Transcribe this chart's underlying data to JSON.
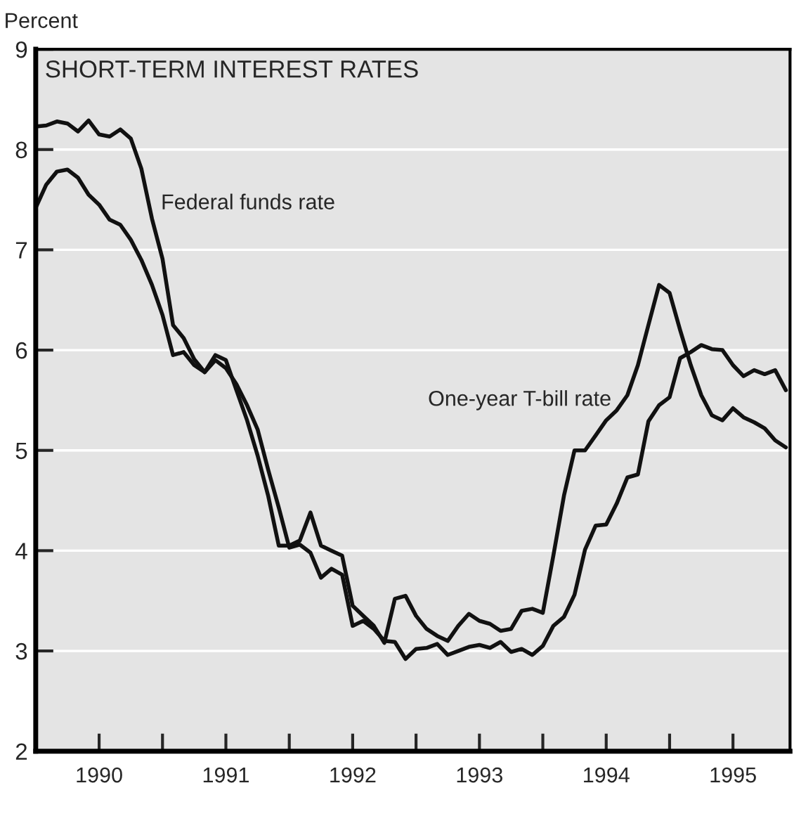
{
  "chart_data": {
    "type": "line",
    "title": "SHORT-TERM INTEREST RATES",
    "ylabel": "Percent",
    "x": [
      1990.0,
      1990.083,
      1990.167,
      1990.25,
      1990.333,
      1990.417,
      1990.5,
      1990.583,
      1990.667,
      1990.75,
      1990.833,
      1990.917,
      1991.0,
      1991.083,
      1991.167,
      1991.25,
      1991.333,
      1991.417,
      1991.5,
      1991.583,
      1991.667,
      1991.75,
      1991.833,
      1991.917,
      1992.0,
      1992.083,
      1992.167,
      1992.25,
      1992.333,
      1992.417,
      1992.5,
      1992.583,
      1992.667,
      1992.75,
      1992.833,
      1992.917,
      1993.0,
      1993.083,
      1993.167,
      1993.25,
      1993.333,
      1993.417,
      1993.5,
      1993.583,
      1993.667,
      1993.75,
      1993.833,
      1993.917,
      1994.0,
      1994.083,
      1994.167,
      1994.25,
      1994.333,
      1994.417,
      1994.5,
      1994.583,
      1994.667,
      1994.75,
      1994.833,
      1994.917,
      1995.0,
      1995.083,
      1995.167,
      1995.25,
      1995.333,
      1995.417,
      1995.5,
      1995.583,
      1995.667,
      1995.75,
      1995.833,
      1995.917
    ],
    "series": [
      {
        "color": "#111111",
        "values": [
          8.23,
          8.24,
          8.28,
          8.26,
          8.18,
          8.29,
          8.15,
          8.13,
          8.2,
          8.11,
          7.81,
          7.31,
          6.91,
          6.25,
          6.12,
          5.91,
          5.78,
          5.9,
          5.82,
          5.66,
          5.45,
          5.21,
          4.81,
          4.43,
          4.03,
          4.06,
          3.98,
          3.73,
          3.82,
          3.76,
          3.25,
          3.3,
          3.22,
          3.1,
          3.09,
          2.92,
          3.02,
          3.03,
          3.07,
          2.96,
          3.0,
          3.04,
          3.06,
          3.03,
          3.09,
          2.99,
          3.02,
          2.96,
          3.05,
          3.25,
          3.34,
          3.56,
          4.01,
          4.25,
          4.26,
          4.47,
          4.73,
          4.76,
          5.29,
          5.45,
          5.53,
          5.92,
          5.98,
          6.05,
          6.01,
          6.0,
          5.85,
          5.74,
          5.8,
          5.76,
          5.8,
          5.6
        ]
      },
      {
        "color": "#111111",
        "values": [
          7.42,
          7.65,
          7.78,
          7.8,
          7.72,
          7.55,
          7.45,
          7.3,
          7.25,
          7.1,
          6.9,
          6.65,
          6.35,
          5.95,
          5.98,
          5.85,
          5.78,
          5.95,
          5.9,
          5.6,
          5.3,
          4.95,
          4.55,
          4.05,
          4.05,
          4.1,
          4.38,
          4.05,
          4.0,
          3.95,
          3.45,
          3.35,
          3.25,
          3.08,
          3.52,
          3.55,
          3.35,
          3.22,
          3.15,
          3.1,
          3.25,
          3.37,
          3.3,
          3.27,
          3.2,
          3.22,
          3.4,
          3.42,
          3.38,
          3.95,
          4.55,
          5.0,
          5.0,
          5.15,
          5.3,
          5.4,
          5.55,
          5.85,
          6.25,
          6.65,
          6.57,
          6.2,
          5.85,
          5.55,
          5.35,
          5.3,
          5.42,
          5.33,
          5.28,
          5.22,
          5.1,
          5.03
        ]
      }
    ],
    "annotations": [
      "Federal funds rate",
      "One-year T-bill rate"
    ],
    "xlim": [
      1990.0,
      1995.95
    ],
    "xticks": [
      {
        "value": 1990.5,
        "label": "1990"
      },
      {
        "value": 1991,
        "label": null
      },
      {
        "value": 1991.5,
        "label": "1991"
      },
      {
        "value": 1992,
        "label": null
      },
      {
        "value": 1992.5,
        "label": "1992"
      },
      {
        "value": 1993,
        "label": null
      },
      {
        "value": 1993.5,
        "label": "1993"
      },
      {
        "value": 1994,
        "label": null
      },
      {
        "value": 1994.5,
        "label": "1994"
      },
      {
        "value": 1995,
        "label": null
      },
      {
        "value": 1995.5,
        "label": "1995"
      }
    ],
    "ylim": [
      2,
      9
    ],
    "yticks": [
      2,
      3,
      4,
      5,
      6,
      7,
      8,
      9
    ],
    "grid": "y",
    "legend": false,
    "line_style": "solid",
    "marker": "none"
  }
}
